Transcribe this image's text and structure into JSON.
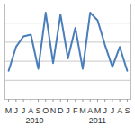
{
  "chart_data": {
    "type": "line",
    "categories": [
      "M",
      "J",
      "J",
      "A",
      "S",
      "O",
      "N",
      "D",
      "J",
      "F",
      "M",
      "A",
      "M",
      "J",
      "J",
      "A",
      "S"
    ],
    "x_groups": [
      {
        "name": "2010",
        "count": 8
      },
      {
        "name": "2011",
        "count": 9
      }
    ],
    "values": [
      30,
      55,
      66,
      68,
      32,
      91,
      38,
      89,
      43,
      75,
      32,
      91,
      83,
      57,
      34,
      55,
      30
    ],
    "color": "#4a7ebb",
    "ylim": [
      0,
      100
    ],
    "yticks": [
      0,
      20,
      40,
      60,
      80,
      100
    ],
    "grid": true,
    "tick_labels": "x"
  }
}
